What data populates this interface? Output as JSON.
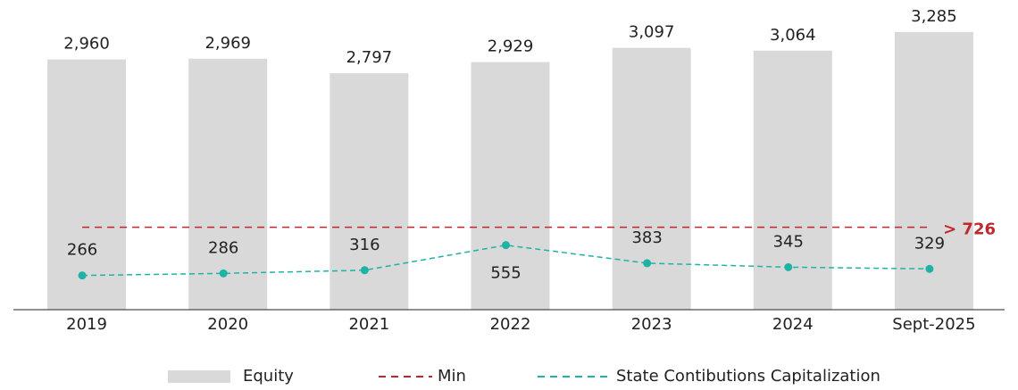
{
  "chart_data": {
    "type": "bar_line",
    "categories": [
      "2019",
      "2020",
      "2021",
      "2022",
      "2023",
      "2024",
      "Sept-2025"
    ],
    "series": [
      {
        "name": "Equity",
        "type": "bar",
        "color": "#d9d9d9",
        "values": [
          2960,
          2969,
          2797,
          2929,
          3097,
          3064,
          3285
        ],
        "value_labels": [
          "2,960",
          "2,969",
          "2,797",
          "2,929",
          "3,097",
          "3,064",
          "3,285"
        ]
      },
      {
        "name": "State Contibutions Capitalization",
        "type": "line",
        "axis": "y2",
        "color": "#1fb3a5",
        "values": [
          266,
          286,
          316,
          555,
          383,
          345,
          329
        ]
      }
    ],
    "reference_lines": [
      {
        "name": "Min",
        "value": 726,
        "label": "> 726",
        "color": "#c0282f",
        "axis": "y2"
      }
    ],
    "ylim": [
      0,
      3600
    ],
    "y2lim": [
      -60,
      2840
    ],
    "legend": "bottom"
  }
}
